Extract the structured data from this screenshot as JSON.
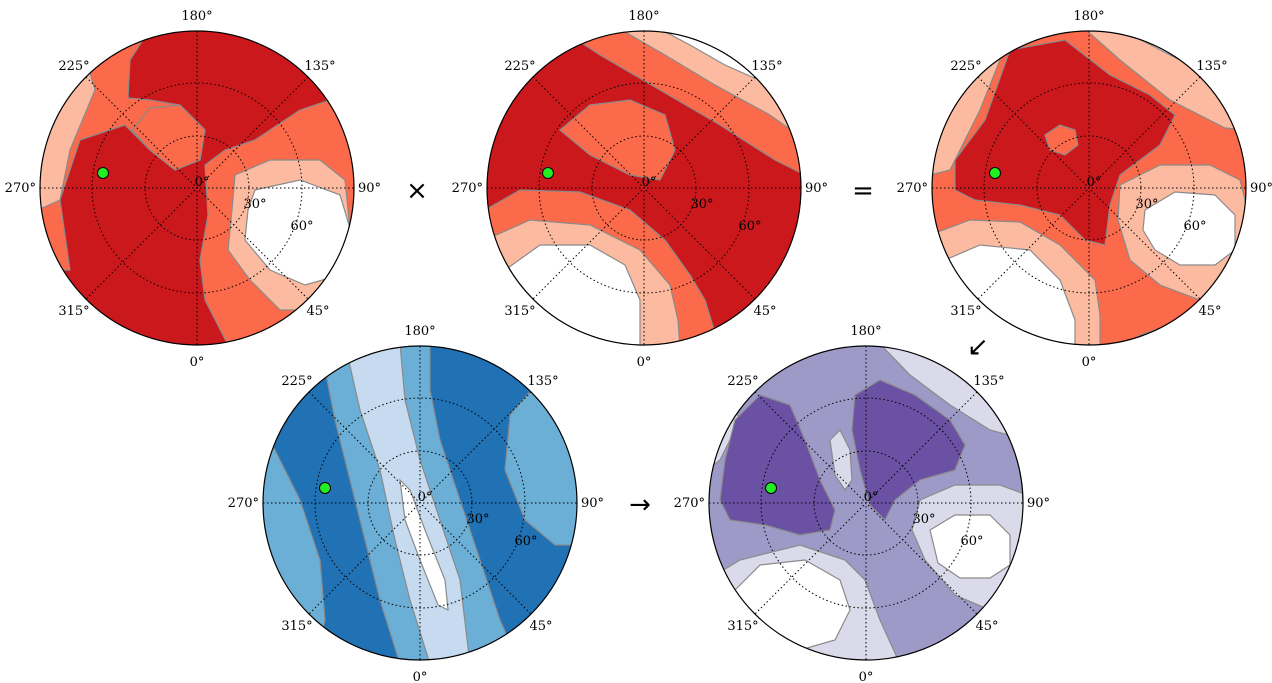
{
  "panels": [
    {
      "id": "p1",
      "labels": {
        "top": "180°",
        "bottom": "0°",
        "left": "270°",
        "right": "90°",
        "ul": "225°",
        "ur": "135°",
        "ll": "315°",
        "lr": "45°",
        "r0": "0°",
        "r30": "30°",
        "r60": "60°"
      }
    },
    {
      "id": "p2",
      "labels": {
        "top": "180°",
        "bottom": "0°",
        "left": "270°",
        "right": "90°",
        "ul": "225°",
        "ur": "135°",
        "ll": "315°",
        "lr": "45°",
        "r0": "0°",
        "r30": "30°",
        "r60": "60°"
      }
    },
    {
      "id": "p3",
      "labels": {
        "top": "180°",
        "bottom": "0°",
        "left": "270°",
        "right": "90°",
        "ul": "225°",
        "ur": "135°",
        "ll": "315°",
        "lr": "45°",
        "r0": "0°",
        "r30": "30°",
        "r60": "60°"
      }
    },
    {
      "id": "p4",
      "labels": {
        "top": "180°",
        "bottom": "0°",
        "left": "270°",
        "right": "90°",
        "ul": "225°",
        "ur": "135°",
        "ll": "315°",
        "lr": "45°",
        "r0": "0°",
        "r30": "30°",
        "r60": "60°"
      }
    },
    {
      "id": "p5",
      "labels": {
        "top": "180°",
        "bottom": "0°",
        "left": "270°",
        "right": "90°",
        "ul": "225°",
        "ur": "135°",
        "ll": "315°",
        "lr": "45°",
        "r0": "0°",
        "r30": "30°",
        "r60": "60°"
      }
    }
  ],
  "operators": {
    "times": "×",
    "equals": "=",
    "arrow_right": "→",
    "arrow_diag": "↙"
  },
  "colors": {
    "red_1": "#ffffff",
    "red_2": "#fcbba1",
    "red_3": "#fb6a4a",
    "red_4": "#cb181d",
    "blue_1": "#ffffff",
    "blue_2": "#c6dbef",
    "blue_3": "#6baed6",
    "blue_4": "#2171b5",
    "purple_1": "#ffffff",
    "purple_2": "#dadaeb",
    "purple_3": "#9e9ac8",
    "purple_4": "#6a51a3",
    "marker": "#22ee22"
  }
}
